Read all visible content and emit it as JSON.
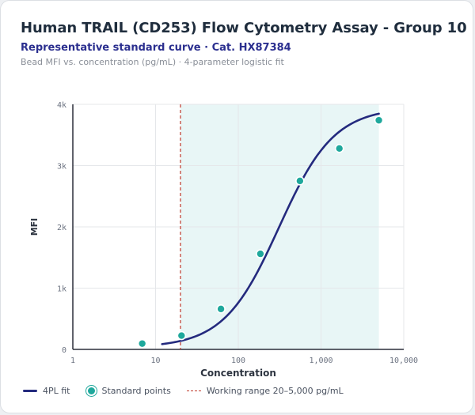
{
  "header": {
    "title": "Human TRAIL (CD253) Flow Cytometry Assay - Group 10",
    "subtitle": "Representative standard curve · Cat. HX87384",
    "caption": "Bead MFI vs. concentration (pg/mL) · 4-parameter logistic fit"
  },
  "legend": {
    "fit_label": "4PL fit",
    "points_label": "Standard points",
    "range_label": "Working range 20–5,000 pg/mL"
  },
  "colors": {
    "fit_line": "#242a7e",
    "points": "#1fa89c",
    "range_line": "#c0392b",
    "range_band": "#e8f6f6",
    "grid": "#e5e7ea"
  },
  "chart_data": {
    "type": "scatter",
    "xlabel": "Concentration",
    "ylabel": "MFI",
    "x_scale": "log",
    "xlim": [
      1,
      10000
    ],
    "ylim": [
      0,
      4000
    ],
    "x_ticks": [
      1,
      10,
      100,
      1000,
      10000
    ],
    "x_tick_labels": [
      "1",
      "10",
      "100",
      "1,000",
      "10,000"
    ],
    "y_ticks": [
      0,
      1000,
      2000,
      3000,
      4000
    ],
    "y_tick_labels": [
      "0",
      "1k",
      "2k",
      "3k",
      "4k"
    ],
    "grid": true,
    "legend_position": "bottom",
    "working_range": [
      20,
      5000
    ],
    "series": [
      {
        "name": "Standard points",
        "kind": "points",
        "x": [
          6.9,
          20.6,
          61.7,
          185,
          556,
          1667,
          5000
        ],
        "y": [
          95,
          225,
          660,
          1560,
          2750,
          3280,
          3740
        ]
      },
      {
        "name": "4PL fit",
        "kind": "curve",
        "x_range": [
          12,
          5000
        ],
        "params": {
          "bottom": 30,
          "top": 3950,
          "ec50": 310,
          "hill": 1.3
        }
      }
    ]
  }
}
